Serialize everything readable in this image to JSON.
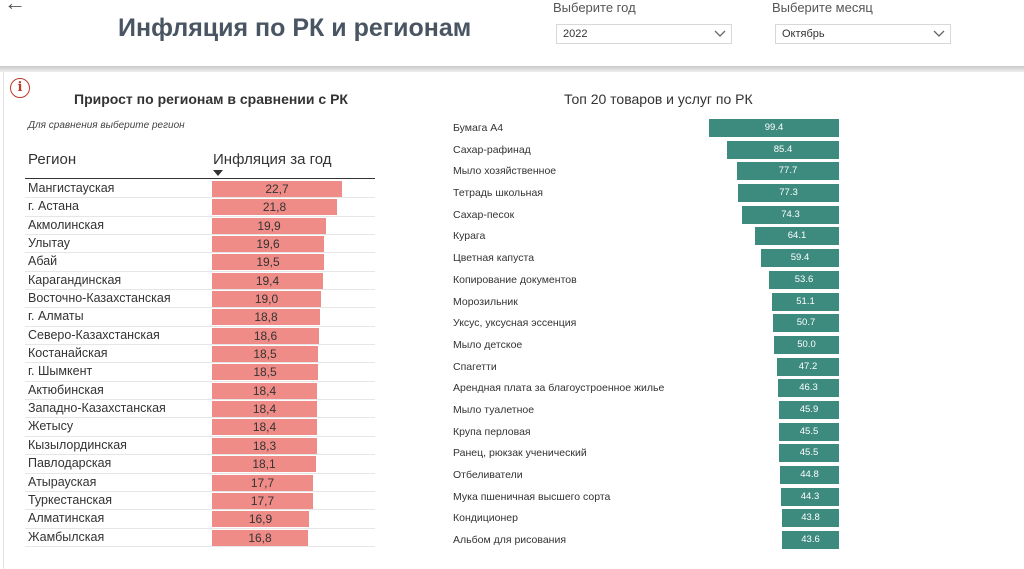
{
  "header": {
    "title": "Инфляция по РК и регионам",
    "year_label": "Выберите год",
    "year_value": "2022",
    "month_label": "Выберите месяц",
    "month_value": "Октябрь"
  },
  "left_panel": {
    "title": "Прирост по регионам в сравнении с РК",
    "note": "Для сравнения выберите регион",
    "col_region": "Регион",
    "col_inflation": "Инфляция за год",
    "rows": [
      {
        "region": "Мангистауская",
        "value": 22.7,
        "label": "22,7"
      },
      {
        "region": "г. Астана",
        "value": 21.8,
        "label": "21,8"
      },
      {
        "region": "Акмолинская",
        "value": 19.9,
        "label": "19,9"
      },
      {
        "region": "Улытау",
        "value": 19.6,
        "label": "19,6"
      },
      {
        "region": "Абай",
        "value": 19.5,
        "label": "19,5"
      },
      {
        "region": "Карагандинская",
        "value": 19.4,
        "label": "19,4"
      },
      {
        "region": "Восточно-Казахстанская",
        "value": 19.0,
        "label": "19,0"
      },
      {
        "region": "г. Алматы",
        "value": 18.8,
        "label": "18,8"
      },
      {
        "region": "Северо-Казахстанская",
        "value": 18.6,
        "label": "18,6"
      },
      {
        "region": "Костанайская",
        "value": 18.5,
        "label": "18,5"
      },
      {
        "region": "г. Шымкент",
        "value": 18.5,
        "label": "18,5"
      },
      {
        "region": "Актюбинская",
        "value": 18.4,
        "label": "18,4"
      },
      {
        "region": "Западно-Казахстанская",
        "value": 18.4,
        "label": "18,4"
      },
      {
        "region": "Жетысу",
        "value": 18.4,
        "label": "18,4"
      },
      {
        "region": "Кызылординская",
        "value": 18.3,
        "label": "18,3"
      },
      {
        "region": "Павлодарская",
        "value": 18.1,
        "label": "18,1"
      },
      {
        "region": "Атырауская",
        "value": 17.7,
        "label": "17,7"
      },
      {
        "region": "Туркестанская",
        "value": 17.7,
        "label": "17,7"
      },
      {
        "region": "Алматинская",
        "value": 16.9,
        "label": "16,9"
      },
      {
        "region": "Жамбылская",
        "value": 16.8,
        "label": "16,8"
      }
    ]
  },
  "right_panel": {
    "title": "Топ 20 товаров и услуг по РК",
    "rows": [
      {
        "item": "Бумага А4",
        "value": 99.4,
        "label": "99.4"
      },
      {
        "item": "Сахар-рафинад",
        "value": 85.4,
        "label": "85.4"
      },
      {
        "item": "Мыло хозяйственное",
        "value": 77.7,
        "label": "77.7"
      },
      {
        "item": "Тетрадь школьная",
        "value": 77.3,
        "label": "77.3"
      },
      {
        "item": "Сахар-песок",
        "value": 74.3,
        "label": "74.3"
      },
      {
        "item": "Курага",
        "value": 64.1,
        "label": "64.1"
      },
      {
        "item": "Цветная капуста",
        "value": 59.4,
        "label": "59.4"
      },
      {
        "item": "Копирование документов",
        "value": 53.6,
        "label": "53.6"
      },
      {
        "item": "Морозильник",
        "value": 51.1,
        "label": "51.1"
      },
      {
        "item": "Уксус, уксусная эссенция",
        "value": 50.7,
        "label": "50.7"
      },
      {
        "item": "Мыло детское",
        "value": 50.0,
        "label": "50.0"
      },
      {
        "item": "Спагетти",
        "value": 47.2,
        "label": "47.2"
      },
      {
        "item": "Арендная плата за благоустроенное жилье",
        "value": 46.3,
        "label": "46.3"
      },
      {
        "item": "Мыло туалетное",
        "value": 45.9,
        "label": "45.9"
      },
      {
        "item": "Крупа перловая",
        "value": 45.5,
        "label": "45.5"
      },
      {
        "item": "Ранец, рюкзак ученический",
        "value": 45.5,
        "label": "45.5"
      },
      {
        "item": "Отбеливатели",
        "value": 44.8,
        "label": "44.8"
      },
      {
        "item": "Мука пшеничная высшего сорта",
        "value": 44.3,
        "label": "44.3"
      },
      {
        "item": "Кондиционер",
        "value": 43.8,
        "label": "43.8"
      },
      {
        "item": "Альбом для рисования",
        "value": 43.6,
        "label": "43.6"
      }
    ]
  },
  "colors": {
    "region_bar": "#f08c88",
    "item_bar": "#3d8a7f",
    "info_icon": "#c0392b"
  },
  "icons": {
    "back": "arrow-left-icon",
    "info": "info-circle-icon",
    "dropdown": "chevron-down-icon",
    "sort": "sort-desc-icon"
  }
}
